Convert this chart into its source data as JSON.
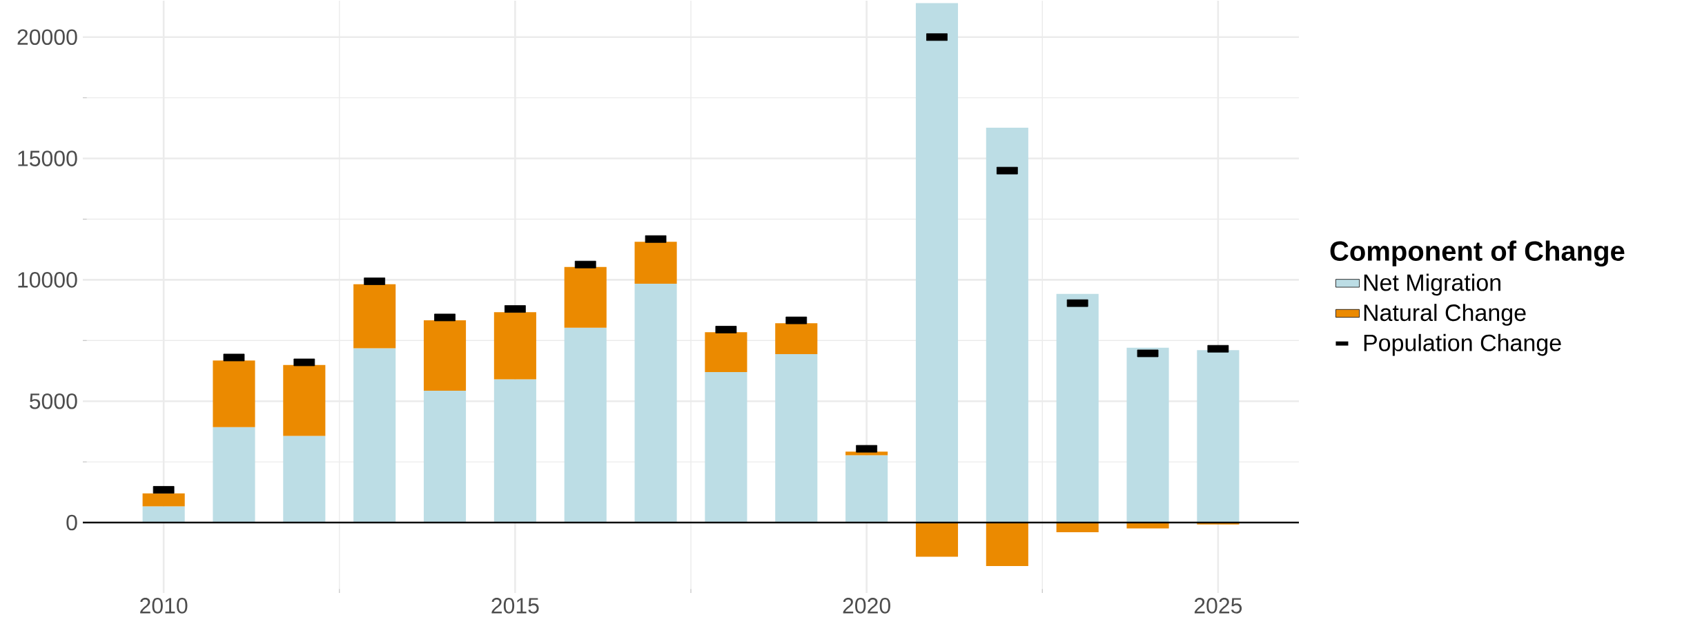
{
  "chart_data": {
    "type": "bar",
    "stacked": true,
    "legend_title": "Component of Change",
    "x": [
      2010,
      2011,
      2012,
      2013,
      2014,
      2015,
      2016,
      2017,
      2018,
      2019,
      2020,
      2021,
      2022,
      2023,
      2024,
      2025
    ],
    "series": [
      {
        "name": "Net Migration",
        "color": "#bcdde5",
        "values": [
          670,
          3930,
          3570,
          7180,
          5430,
          5900,
          8030,
          9840,
          6200,
          6940,
          2770,
          21400,
          16270,
          9420,
          7200,
          7100
        ]
      },
      {
        "name": "Natural Change",
        "color": "#eb8a00",
        "values": [
          530,
          2750,
          2920,
          2640,
          2900,
          2770,
          2500,
          1730,
          1640,
          1270,
          150,
          -1410,
          -1790,
          -400,
          -240,
          -80
        ]
      },
      {
        "name": "Population Change",
        "type": "scatter",
        "color": "#000000",
        "values": [
          1350,
          6800,
          6600,
          9940,
          8450,
          8800,
          10630,
          11680,
          7950,
          8330,
          3040,
          20000,
          14500,
          9040,
          6970,
          7160
        ]
      }
    ],
    "xlim": [
      2008.85,
      2026.15
    ],
    "ylim": [
      -2900,
      21500
    ],
    "xticks": [
      2010,
      2015,
      2020,
      2025
    ],
    "yticks": [
      0,
      5000,
      10000,
      15000,
      20000
    ],
    "grid": true,
    "legend": "right",
    "ref_lines": [
      {
        "axis": "y",
        "value": 0,
        "color": "#000000"
      }
    ]
  }
}
